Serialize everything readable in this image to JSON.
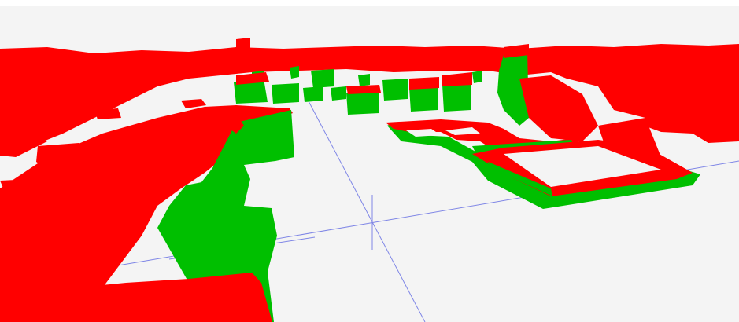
{
  "viewport": {
    "background_color": "#f4f4f4",
    "frame_color": "#ffffff"
  },
  "colors": {
    "roof": "#ff0000",
    "wall": "#00bf00",
    "axis": "#7f86e6"
  }
}
